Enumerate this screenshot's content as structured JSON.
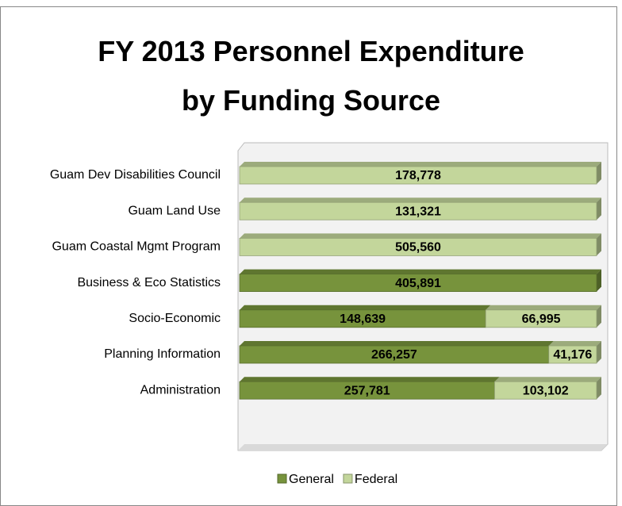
{
  "chart_data": {
    "type": "bar",
    "orientation": "horizontal",
    "stacking": "percent",
    "title": "FY 2013 Personnel Expenditure by Funding Source",
    "categories": [
      "Guam Dev Disabilities Council",
      "Guam Land Use",
      "Guam Coastal Mgmt Program",
      "Business & Eco Statistics",
      "Socio-Economic",
      "Planning Information",
      "Administration"
    ],
    "series": [
      {
        "name": "General",
        "color": "#77933c",
        "values": [
          null,
          null,
          null,
          405891,
          148639,
          266257,
          257781
        ],
        "value_labels": [
          null,
          null,
          null,
          "405,891",
          "148,639",
          "266,257",
          "257,781"
        ]
      },
      {
        "name": "Federal",
        "color": "#c3d69b",
        "values": [
          178778,
          131321,
          505560,
          null,
          66995,
          41176,
          103102
        ],
        "value_labels": [
          "178,778",
          "131,321",
          "505,560",
          null,
          "66,995",
          "41,176",
          "103,102"
        ]
      }
    ],
    "legend": "bottom"
  }
}
